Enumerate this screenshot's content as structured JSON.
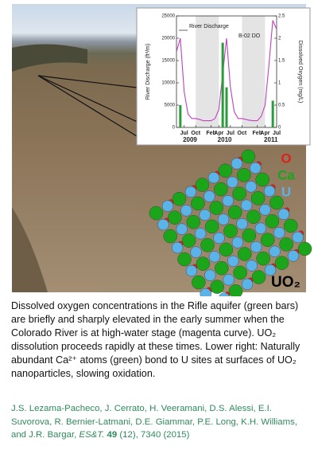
{
  "chart_data": {
    "type": "line",
    "x": [
      "2009-05",
      "2009-06",
      "2009-07",
      "2009-08",
      "2009-09",
      "2009-10",
      "2009-11",
      "2009-12",
      "2010-01",
      "2010-02",
      "2010-03",
      "2010-04",
      "2010-05",
      "2010-06",
      "2010-07",
      "2010-08",
      "2010-09",
      "2010-10",
      "2010-11",
      "2010-12",
      "2011-01",
      "2011-02",
      "2011-03",
      "2011-04",
      "2011-05",
      "2011-06",
      "2011-07"
    ],
    "xlim": [
      "2009-05",
      "2011-07"
    ],
    "xticks": [
      {
        "value": "2009-07",
        "label": "Jul"
      },
      {
        "value": "2009-10",
        "label": "Oct"
      },
      {
        "value": "2010-02",
        "label": "Feb"
      },
      {
        "value": "2010-04",
        "label": "Apr"
      },
      {
        "value": "2010-07",
        "label": "Jul"
      },
      {
        "value": "2010-10",
        "label": "Oct"
      },
      {
        "value": "2011-02",
        "label": "Feb"
      },
      {
        "value": "2011-04",
        "label": "Apr"
      },
      {
        "value": "2011-07",
        "label": "Jul"
      }
    ],
    "year_labels": [
      "2009",
      "2010",
      "2011"
    ],
    "ylabel": "River Discharge (ft³/m)",
    "y2label": "Dissolved Oxygen (mg/L)",
    "ylim": [
      0,
      25000
    ],
    "yticks": [
      0,
      5000,
      10000,
      15000,
      20000,
      25000
    ],
    "y2lim": [
      0,
      2.5
    ],
    "y2ticks": [
      0,
      0.5,
      1,
      1.5,
      2,
      2.5
    ],
    "series": [
      {
        "name": "River Discharge",
        "color": "#c040c0",
        "values": [
          17000,
          20000,
          8000,
          3000,
          2000,
          2000,
          1800,
          1500,
          1500,
          1500,
          2000,
          4000,
          12000,
          20000,
          9000,
          3500,
          2000,
          2000,
          1800,
          1600,
          1500,
          1500,
          2500,
          5000,
          14000,
          24000,
          22000
        ]
      },
      {
        "name": "B-02 DO",
        "type": "bar",
        "axis": "y2",
        "color": "#2a9d3a",
        "values": [
          null,
          0.5,
          null,
          null,
          null,
          null,
          null,
          null,
          null,
          null,
          null,
          null,
          1.9,
          0.9,
          null,
          null,
          null,
          null,
          null,
          null,
          null,
          null,
          null,
          null,
          null,
          0.6,
          null
        ]
      }
    ]
  },
  "structure": {
    "elements": [
      {
        "label": "O",
        "color": "#e0201b"
      },
      {
        "label": "Ca",
        "color": "#1aa51a"
      },
      {
        "label": "U",
        "color": "#5ab4e8"
      }
    ],
    "formula": "UO₂"
  },
  "caption": "Dissolved oxygen concentrations in the Rifle aquifer (green bars) are briefly and sharply elevated in the early summer when the Colorado River is at high-water stage (magenta curve).  UO₂ dissolution proceeds rapidly at these times. Lower right: Naturally abundant Ca²⁺ atoms (green) bond to U sites at surfaces of UO₂ nanoparticles, slowing oxidation.",
  "citation": {
    "authors": "J.S. Lezama-Pacheco, J. Cerrato, H. Veeramani, D.S. Alessi, E.I. Suvorova,  R. Bernier-Latmani, D.E. Giammar, P.E. Long, K.H. Williams, and J.R. Bargar, ",
    "journal": "ES&T.",
    "volume": "49",
    "rest": " (12), 7340 (2015)"
  }
}
